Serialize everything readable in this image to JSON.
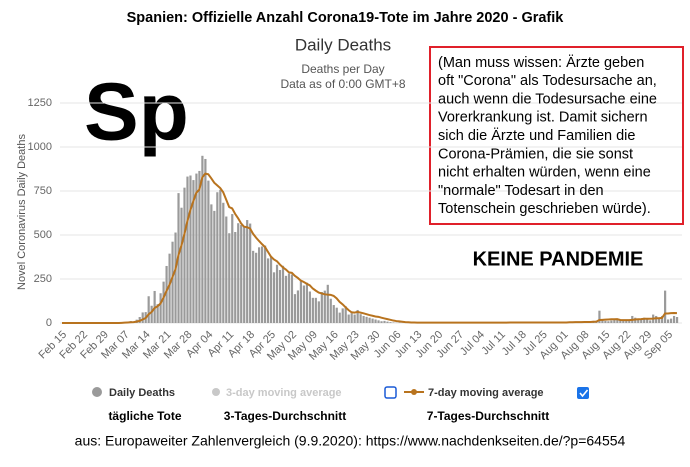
{
  "title": "Spanien: Offizielle Anzahl Corona19-Tote im Jahre 2020 - Grafik",
  "chart_data": {
    "type": "bar",
    "title": "Daily Deaths",
    "subtitle": "Deaths per Day",
    "note": "Data as of 0:00 GMT+8",
    "y_label": "Novel Coronavirus Daily Deaths",
    "categories": [
      "Feb 15",
      null,
      null,
      null,
      null,
      null,
      null,
      "Feb 22",
      null,
      null,
      null,
      null,
      null,
      null,
      "Feb 29",
      null,
      null,
      null,
      null,
      null,
      null,
      "Mar 07",
      null,
      null,
      null,
      null,
      null,
      null,
      "Mar 14",
      null,
      null,
      null,
      null,
      null,
      null,
      "Mar 21",
      null,
      null,
      null,
      null,
      null,
      null,
      "Mar 28",
      null,
      null,
      null,
      null,
      null,
      null,
      "Apr 04",
      null,
      null,
      null,
      null,
      null,
      null,
      "Apr 11",
      null,
      null,
      null,
      null,
      null,
      null,
      "Apr 18",
      null,
      null,
      null,
      null,
      null,
      null,
      "Apr 25",
      null,
      null,
      null,
      null,
      null,
      null,
      "May 02",
      null,
      null,
      null,
      null,
      null,
      null,
      "May 09",
      null,
      null,
      null,
      null,
      null,
      null,
      "May 16",
      null,
      null,
      null,
      null,
      null,
      null,
      "May 23",
      null,
      null,
      null,
      null,
      null,
      null,
      "May 30",
      null,
      null,
      null,
      null,
      null,
      null,
      "Jun 06",
      null,
      null,
      null,
      null,
      null,
      null,
      "Jun 13",
      null,
      null,
      null,
      null,
      null,
      null,
      "Jun 20",
      null,
      null,
      null,
      null,
      null,
      null,
      "Jun 27",
      null,
      null,
      null,
      null,
      null,
      null,
      "Jul 04",
      null,
      null,
      null,
      null,
      null,
      null,
      "Jul 11",
      null,
      null,
      null,
      null,
      null,
      null,
      "Jul 18",
      null,
      null,
      null,
      null,
      null,
      null,
      "Jul 25",
      null,
      null,
      null,
      null,
      null,
      null,
      "Aug 01",
      null,
      null,
      null,
      null,
      null,
      null,
      "Aug 08",
      null,
      null,
      null,
      null,
      null,
      null,
      "Aug 15",
      null,
      null,
      null,
      null,
      null,
      null,
      "Aug 22",
      null,
      null,
      null,
      null,
      null,
      null,
      "Aug 29",
      null,
      null,
      null,
      null,
      null,
      null,
      "Sep 05",
      null,
      null,
      null
    ],
    "series": [
      {
        "name": "Daily Deaths",
        "type": "bar",
        "color": "#9a9a9a",
        "values": [
          0,
          0,
          0,
          0,
          0,
          0,
          0,
          0,
          0,
          0,
          0,
          0,
          0,
          0,
          0,
          0,
          0,
          1,
          0,
          2,
          5,
          5,
          7,
          11,
          7,
          19,
          34,
          60,
          62,
          152,
          98,
          182,
          107,
          169,
          235,
          324,
          394,
          462,
          514,
          738,
          655,
          769,
          832,
          838,
          812,
          849,
          864,
          950,
          932,
          809,
          674,
          637,
          743,
          757,
          683,
          605,
          510,
          619,
          517,
          567,
          557,
          551,
          585,
          565,
          410,
          399,
          430,
          435,
          440,
          367,
          378,
          288,
          331,
          301,
          325,
          268,
          281,
          276,
          164,
          185,
          244,
          213,
          229,
          179,
          143,
          143,
          123,
          176,
          184,
          217,
          138,
          102,
          87,
          59,
          83,
          95,
          48,
          56,
          48,
          74,
          50,
          40,
          35,
          30,
          25,
          20,
          15,
          10,
          12,
          8,
          5,
          3,
          2,
          2,
          1,
          1,
          2,
          3,
          4,
          3,
          2,
          1,
          2,
          3,
          2,
          1,
          2,
          1,
          2,
          3,
          2,
          1,
          2,
          2,
          1,
          3,
          2,
          4,
          3,
          2,
          2,
          1,
          3,
          2,
          2,
          3,
          2,
          3,
          2,
          1,
          2,
          3,
          4,
          3,
          2,
          2,
          3,
          4,
          3,
          2,
          2,
          2,
          3,
          2,
          3,
          4,
          5,
          4,
          3,
          3,
          8,
          2,
          7,
          6,
          9,
          5,
          4,
          8,
          12,
          13,
          70,
          16,
          12,
          10,
          14,
          20,
          22,
          17,
          15,
          15,
          14,
          40,
          30,
          25,
          25,
          30,
          20,
          15,
          48,
          40,
          30,
          40,
          184,
          20,
          25,
          40,
          34
        ]
      },
      {
        "name": "7-day moving average",
        "type": "line",
        "color": "#b8731e",
        "values": [
          0,
          0,
          0,
          0,
          0,
          0,
          0,
          0,
          0,
          0,
          0,
          0,
          0,
          0,
          0,
          0,
          0,
          0,
          0,
          0,
          1,
          2,
          3,
          4,
          5,
          8,
          12,
          20,
          28,
          49,
          62,
          85,
          95,
          111,
          144,
          182,
          217,
          261,
          305,
          385,
          440,
          505,
          578,
          641,
          692,
          740,
          758,
          827,
          849,
          845,
          822,
          797,
          782,
          767,
          743,
          701,
          659,
          651,
          620,
          595,
          566,
          547,
          544,
          537,
          507,
          485,
          466,
          448,
          432,
          404,
          377,
          361,
          351,
          332,
          316,
          304,
          288,
          285,
          268,
          256,
          241,
          233,
          223,
          214,
          196,
          184,
          173,
          168,
          163,
          161,
          160,
          154,
          140,
          120,
          106,
          89,
          73,
          61,
          59,
          63,
          59,
          55,
          50,
          45,
          41,
          37,
          35,
          30,
          26,
          22,
          18,
          14,
          11,
          9,
          7,
          5,
          4,
          3,
          3,
          2,
          2,
          2,
          2,
          2,
          2,
          2,
          2,
          2,
          2,
          2,
          2,
          2,
          2,
          2,
          2,
          2,
          2,
          2,
          2,
          2,
          2,
          2,
          2,
          2,
          2,
          2,
          2,
          2,
          2,
          2,
          3,
          3,
          3,
          3,
          3,
          3,
          3,
          3,
          3,
          3,
          3,
          3,
          3,
          3,
          3,
          3,
          3,
          3,
          3,
          3,
          4,
          4,
          5,
          5,
          5,
          6,
          6,
          6,
          7,
          8,
          17,
          18,
          19,
          20,
          21,
          21,
          22,
          17,
          16,
          16,
          16,
          18,
          20,
          21,
          22,
          24,
          24,
          24,
          25,
          27,
          27,
          29,
          54,
          54,
          56,
          57,
          56
        ]
      }
    ],
    "legend_extra": {
      "name": "3-day moving average",
      "color": "#c8c8c8"
    },
    "ylim": [
      0,
      1250
    ],
    "yticks": [
      0,
      250,
      500,
      750,
      1000,
      1250
    ],
    "grid": true
  },
  "annotations": {
    "logo": "Sp",
    "box_lines": [
      "(Man muss wissen: Ärzte geben",
      "oft \"Corona\" als Todesursache an,",
      "auch wenn die Todesursache eine",
      "Vorerkrankung ist. Damit sichern",
      "sich die Ärzte und Familien die",
      "Corona-Prämien, die sie sonst",
      "nicht erhalten würden, wenn eine",
      "\"normale\" Todesart in den",
      "Totenschein geschrieben würde)."
    ],
    "headline": "KEINE PANDEMIE",
    "legend_german": [
      "tägliche Tote",
      "3-Tages-Durchschnitt",
      "7-Tages-Durchschnitt"
    ]
  },
  "source": "aus: Europaweiter Zahlenvergleich (9.9.2020): https://www.nachdenkseiten.de/?p=64554"
}
